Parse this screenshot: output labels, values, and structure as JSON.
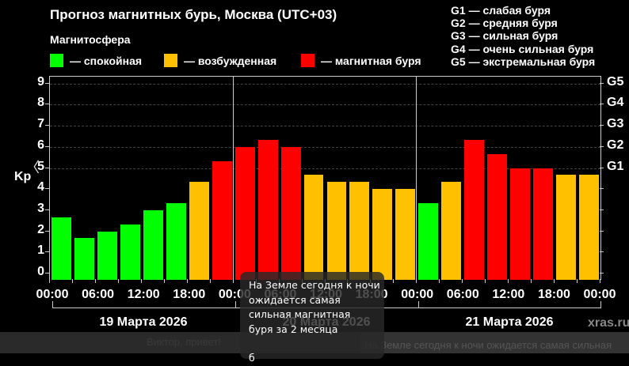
{
  "header": {
    "title": "Прогноз магнитных бурь, Москва (UTC+03)",
    "subtitle": "Магнитосфера"
  },
  "legend": [
    {
      "label": "— спокойная",
      "color": "#00ff00"
    },
    {
      "label": "— возбужденная",
      "color": "#ffc000"
    },
    {
      "label": "— магнитная буря",
      "color": "#ff0000"
    }
  ],
  "g_legend": [
    "G1 — слабая буря",
    "G2 — средняя буря",
    "G3 — сильная буря",
    "G4 — очень сильная буря",
    "G5 — экстремальная буря"
  ],
  "axis": {
    "ylabel": "Kp",
    "yticks": [
      "0",
      "1",
      "2",
      "3",
      "4",
      "5",
      "6",
      "7",
      "8",
      "9"
    ],
    "gticks": [
      "G1",
      "G2",
      "G3",
      "G4",
      "G5"
    ],
    "xticks": [
      "00:00",
      "06:00",
      "12:00",
      "18:00",
      "00:00",
      "06:00",
      "12:00",
      "18:00",
      "00:00",
      "06:00",
      "12:00",
      "18:00",
      "00:00"
    ],
    "days": [
      "19 Марта 2026",
      "20 Марта 2026",
      "21 Марта 2026"
    ]
  },
  "brand": "xras.ru",
  "tooltip": {
    "lines": [
      "На Земле сегодня к ночи",
      "ожидается самая",
      "сильная магнитная",
      "буря за 2 месяца",
      "",
      "б"
    ]
  },
  "bottom": {
    "left_text": "Виктор, привет!",
    "right_text": "На Земле сегодня к ночи ожидается самая сильная"
  },
  "chart_data": {
    "type": "bar",
    "title": "Прогноз магнитных бурь, Москва (UTC+03)",
    "xlabel": "",
    "ylabel": "Kp",
    "ylim": [
      0,
      9
    ],
    "grid": true,
    "secondary_axis": {
      "G1": 5,
      "G2": 6,
      "G3": 7,
      "G4": 8,
      "G5": 9
    },
    "categories": [
      "19.03 00:00",
      "19.03 03:00",
      "19.03 06:00",
      "19.03 09:00",
      "19.03 12:00",
      "19.03 15:00",
      "19.03 18:00",
      "19.03 21:00",
      "20.03 00:00",
      "20.03 03:00",
      "20.03 06:00",
      "20.03 09:00",
      "20.03 12:00",
      "20.03 15:00",
      "20.03 18:00",
      "20.03 21:00",
      "21.03 00:00",
      "21.03 03:00",
      "21.03 06:00",
      "21.03 09:00",
      "21.03 12:00",
      "21.03 15:00",
      "21.03 18:00",
      "21.03 21:00"
    ],
    "values": [
      2.67,
      1.67,
      2.0,
      2.33,
      3.0,
      3.33,
      4.33,
      5.33,
      6.0,
      6.33,
      6.0,
      4.67,
      4.33,
      4.33,
      4.0,
      4.0,
      3.33,
      4.33,
      6.33,
      5.67,
      5.0,
      5.0,
      4.67,
      4.67
    ],
    "colors": {
      "quiet": "#00ff00",
      "unsettled": "#ffc000",
      "storm": "#ff0000"
    }
  }
}
